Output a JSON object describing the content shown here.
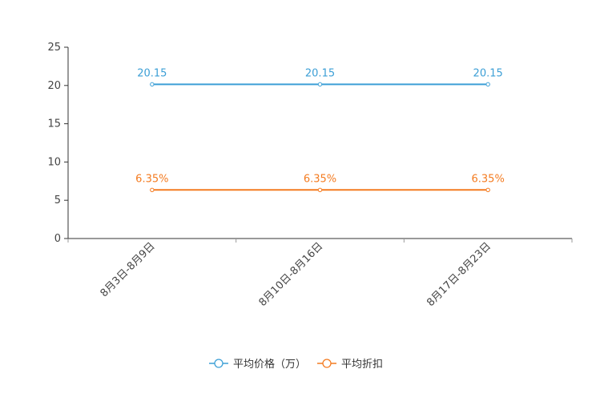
{
  "chart_data": {
    "type": "line",
    "title": "",
    "xlabel": "",
    "ylabel": "",
    "categories": [
      "8月3日-8月9日",
      "8月10日-8月16日",
      "8月17日-8月23日"
    ],
    "ylim": [
      0,
      25
    ],
    "yticks": [
      0,
      5,
      10,
      15,
      20,
      25
    ],
    "grid": false,
    "legend_position": "bottom-center",
    "series": [
      {
        "name": "平均价格（万）",
        "color": "#3c9fd6",
        "values": [
          20.15,
          20.15,
          20.15
        ],
        "labels": [
          "20.15",
          "20.15",
          "20.15"
        ]
      },
      {
        "name": "平均折扣",
        "color": "#f47b20",
        "values": [
          6.35,
          6.35,
          6.35
        ],
        "labels": [
          "6.35%",
          "6.35%",
          "6.35%"
        ]
      }
    ]
  }
}
